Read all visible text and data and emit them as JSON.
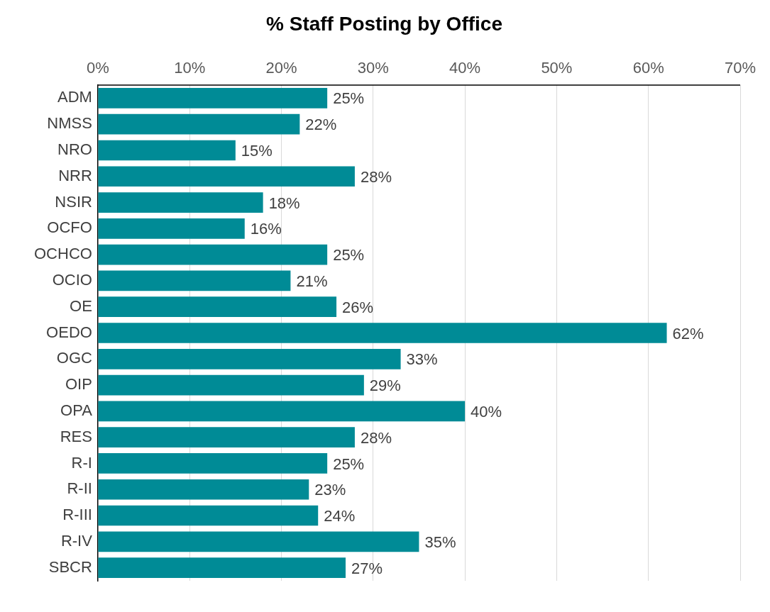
{
  "chart_data": {
    "type": "bar",
    "orientation": "horizontal",
    "title": "% Staff Posting by Office",
    "categories": [
      "ADM",
      "NMSS",
      "NRO",
      "NRR",
      "NSIR",
      "OCFO",
      "OCHCO",
      "OCIO",
      "OE",
      "OEDO",
      "OGC",
      "OIP",
      "OPA",
      "RES",
      "R-I",
      "R-II",
      "R-III",
      "R-IV",
      "SBCR"
    ],
    "values": [
      25,
      22,
      15,
      28,
      18,
      16,
      25,
      21,
      26,
      62,
      33,
      29,
      40,
      28,
      25,
      23,
      24,
      35,
      27
    ],
    "value_labels": [
      "25%",
      "22%",
      "15%",
      "28%",
      "18%",
      "16%",
      "25%",
      "21%",
      "26%",
      "62%",
      "33%",
      "29%",
      "40%",
      "28%",
      "25%",
      "23%",
      "24%",
      "35%",
      "27%"
    ],
    "color": "#008b96",
    "xlim": [
      0,
      70
    ],
    "xticks": [
      {
        "value": 0,
        "label": "0%"
      },
      {
        "value": 10,
        "label": "10%"
      },
      {
        "value": 20,
        "label": "20%"
      },
      {
        "value": 30,
        "label": "30%"
      },
      {
        "value": 40,
        "label": "40%"
      },
      {
        "value": 50,
        "label": "50%"
      },
      {
        "value": 60,
        "label": "60%"
      },
      {
        "value": 70,
        "label": "70%"
      }
    ],
    "grid": "x",
    "legend": false
  }
}
